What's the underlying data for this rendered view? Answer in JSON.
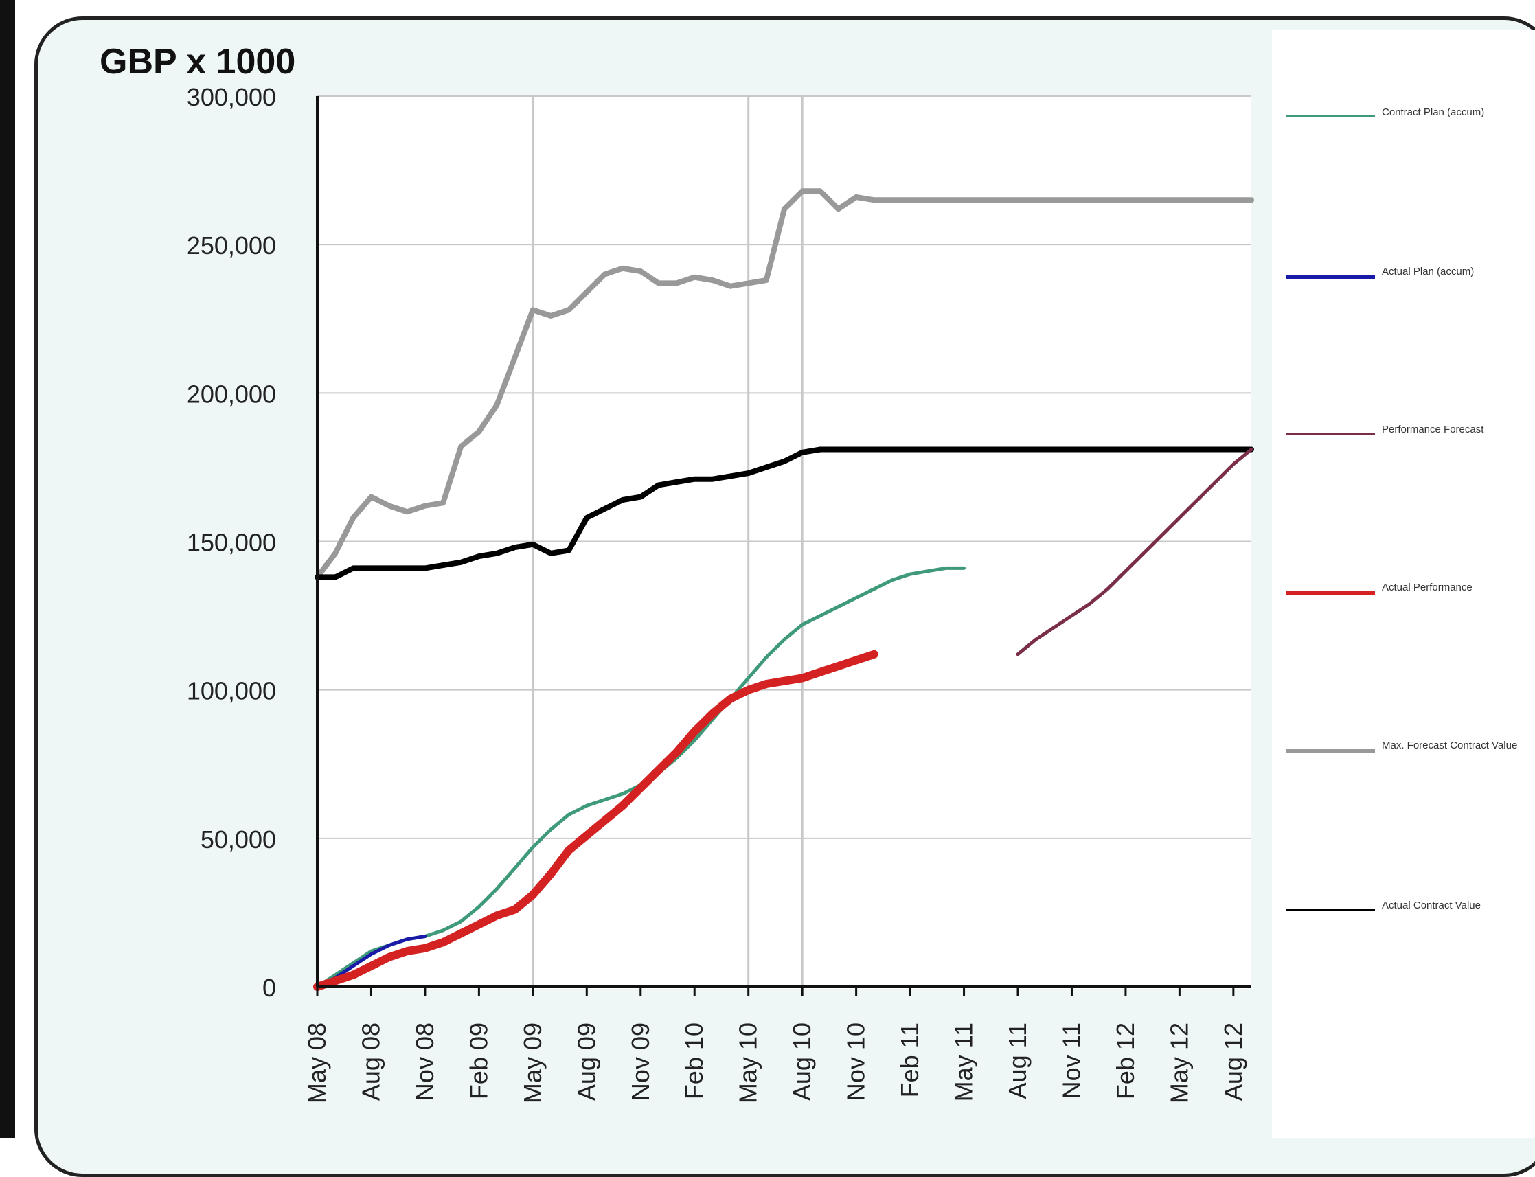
{
  "chart_data": {
    "type": "line",
    "title": "GBP x 1000",
    "xlabel": "",
    "ylabel": "",
    "ylim": [
      0,
      300000
    ],
    "y_ticks": [
      "0",
      "50,000",
      "100,000",
      "150,000",
      "200,000",
      "250,000",
      "300,000"
    ],
    "y_tick_values": [
      0,
      50000,
      100000,
      150000,
      200000,
      250000,
      300000
    ],
    "x_categories": [
      "May 08",
      "Jun 08",
      "Jul 08",
      "Aug 08",
      "Sep 08",
      "Oct 08",
      "Nov 08",
      "Dec 08",
      "Jan 09",
      "Feb 09",
      "Mar 09",
      "Apr 09",
      "May 09",
      "Jun 09",
      "Jul 09",
      "Aug 09",
      "Sep 09",
      "Oct 09",
      "Nov 09",
      "Dec 09",
      "Jan 10",
      "Feb 10",
      "Mar 10",
      "Apr 10",
      "May 10",
      "Jun 10",
      "Jul 10",
      "Aug 10",
      "Sep 10",
      "Oct 10",
      "Nov 10",
      "Dec 10",
      "Jan 11",
      "Feb 11",
      "Mar 11",
      "Apr 11",
      "May 11",
      "Jun 11",
      "Jul 11",
      "Aug 11",
      "Sep 11",
      "Oct 11",
      "Nov 11",
      "Dec 11",
      "Jan 12",
      "Feb 12",
      "Mar 12",
      "Apr 12",
      "May 12",
      "Jun 12",
      "Jul 12",
      "Aug 12",
      "Sep 12"
    ],
    "x_tick_labels": [
      "May 08",
      "Aug 08",
      "Nov 08",
      "Feb 09",
      "May 09",
      "Aug 09",
      "Nov 09",
      "Feb 10",
      "May 10",
      "Aug 10",
      "Nov 10",
      "Feb 11",
      "May 11",
      "Aug 11",
      "Nov 11",
      "Feb 12",
      "May 12",
      "Aug 12"
    ],
    "vertical_gridlines_at": [
      "May 09",
      "May 10",
      "Aug 10"
    ],
    "grid": "horizontal at y ticks",
    "legend_position": "right",
    "series": [
      {
        "name": "Contract Plan (accum)",
        "color": "#3e9a78",
        "width": 5,
        "values": [
          0,
          4000,
          8000,
          12000,
          14000,
          16000,
          17000,
          19000,
          22000,
          27000,
          33000,
          40000,
          47000,
          53000,
          58000,
          61000,
          63000,
          65000,
          68000,
          72000,
          77000,
          83000,
          90000,
          97000,
          104000,
          111000,
          117000,
          122000,
          125000,
          128000,
          131000,
          134000,
          137000,
          139000,
          140000,
          141000,
          141000
        ]
      },
      {
        "name": "Actual Plan (accum)",
        "color": "#1a1aa8",
        "width": 5,
        "values": [
          0,
          3000,
          7000,
          11000,
          14000,
          16000,
          17000
        ]
      },
      {
        "name": "Performance Forecast",
        "color": "#7a2e4a",
        "width": 5,
        "start_index": 39,
        "values": [
          112000,
          117000,
          121000,
          125000,
          129000,
          134000,
          140000,
          146000,
          152000,
          158000,
          164000,
          170000,
          176000,
          181000
        ]
      },
      {
        "name": "Actual Performance",
        "color": "#d42222",
        "width": 12,
        "values": [
          0,
          2000,
          4000,
          7000,
          10000,
          12000,
          13000,
          15000,
          18000,
          21000,
          24000,
          26000,
          31000,
          38000,
          46000,
          51000,
          56000,
          61000,
          67000,
          73000,
          79000,
          86000,
          92000,
          97000,
          100000,
          102000,
          103000,
          104000,
          106000,
          108000,
          110000,
          112000
        ]
      },
      {
        "name": "Max. Forecast Contract Value",
        "color": "#999999",
        "width": 8,
        "values": [
          138000,
          146000,
          158000,
          165000,
          162000,
          160000,
          162000,
          163000,
          182000,
          187000,
          196000,
          212000,
          228000,
          226000,
          228000,
          234000,
          240000,
          242000,
          241000,
          237000,
          237000,
          239000,
          238000,
          236000,
          237000,
          238000,
          262000,
          268000,
          268000,
          262000,
          266000,
          265000,
          265000,
          265000,
          265000,
          265000,
          265000,
          265000,
          265000,
          265000,
          265000,
          265000,
          265000,
          265000,
          265000,
          265000,
          265000,
          265000,
          265000,
          265000,
          265000,
          265000,
          265000
        ]
      },
      {
        "name": "Actual Contract Value",
        "color": "#000000",
        "width": 8,
        "values": [
          138000,
          138000,
          141000,
          141000,
          141000,
          141000,
          141000,
          142000,
          143000,
          145000,
          146000,
          148000,
          149000,
          146000,
          147000,
          158000,
          161000,
          164000,
          165000,
          169000,
          170000,
          171000,
          171000,
          172000,
          173000,
          175000,
          177000,
          180000,
          181000,
          181000,
          181000,
          181000,
          181000,
          181000,
          181000,
          181000,
          181000,
          181000,
          181000,
          181000,
          181000,
          181000,
          181000,
          181000,
          181000,
          181000,
          181000,
          181000,
          181000,
          181000,
          181000,
          181000,
          181000
        ]
      }
    ]
  }
}
